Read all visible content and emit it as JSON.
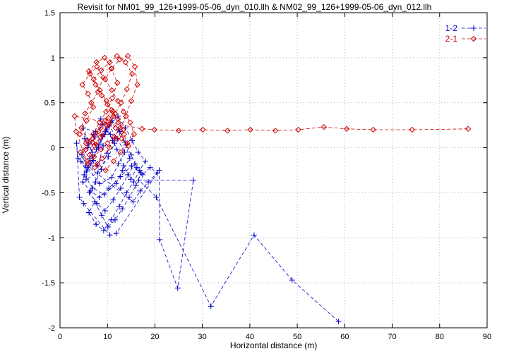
{
  "chart_data": {
    "type": "scatter",
    "title": "Revisit for NM01_99_126+1999-05-06_dyn_010.llh & NM02_99_126+1999-05-06_dyn_012.llh",
    "xlabel": "Horizontal distance (m)",
    "ylabel": "Vertical distance (m)",
    "xlim": [
      0,
      90
    ],
    "ylim": [
      -2,
      1.5
    ],
    "xticks": [
      0,
      10,
      20,
      30,
      40,
      50,
      60,
      70,
      80,
      90
    ],
    "yticks": [
      -2,
      -1.5,
      -1,
      -0.5,
      0,
      0.5,
      1,
      1.5
    ],
    "grid": true,
    "grid_color": "#b8b8b8",
    "legend_position": "top-right",
    "series": [
      {
        "name": "1-2",
        "color": "#0000cc",
        "marker": "plus",
        "linestyle": "dashed",
        "points": [
          [
            5.2,
            0.1
          ],
          [
            6.8,
            -0.05
          ],
          [
            4.9,
            0.22
          ],
          [
            7.5,
            0.18
          ],
          [
            9.1,
            0.02
          ],
          [
            8.0,
            -0.2
          ],
          [
            6.3,
            -0.12
          ],
          [
            5.5,
            -0.35
          ],
          [
            7.9,
            -0.28
          ],
          [
            10.2,
            -0.1
          ],
          [
            11.5,
            0.05
          ],
          [
            9.8,
            0.2
          ],
          [
            8.6,
            0.32
          ],
          [
            7.1,
            0.15
          ],
          [
            6.0,
            0.05
          ],
          [
            4.6,
            -0.08
          ],
          [
            5.8,
            -0.22
          ],
          [
            8.4,
            -0.4
          ],
          [
            10.9,
            -0.33
          ],
          [
            12.3,
            -0.18
          ],
          [
            13.6,
            -0.05
          ],
          [
            12.1,
            0.1
          ],
          [
            10.4,
            0.24
          ],
          [
            9.0,
            0.12
          ],
          [
            7.7,
            -0.02
          ],
          [
            6.5,
            -0.18
          ],
          [
            5.1,
            -0.3
          ],
          [
            6.9,
            -0.45
          ],
          [
            9.3,
            -0.52
          ],
          [
            11.8,
            -0.4
          ],
          [
            13.2,
            -0.25
          ],
          [
            14.7,
            -0.12
          ],
          [
            13.9,
            0.03
          ],
          [
            12.6,
            0.18
          ],
          [
            11.0,
            0.3
          ],
          [
            9.6,
            0.18
          ],
          [
            8.2,
            0.04
          ],
          [
            7.0,
            -0.14
          ],
          [
            5.6,
            -0.26
          ],
          [
            4.4,
            -0.15
          ],
          [
            5.9,
            0.0
          ],
          [
            7.4,
            0.12
          ],
          [
            8.9,
            0.26
          ],
          [
            10.6,
            0.15
          ],
          [
            12.0,
            -0.02
          ],
          [
            13.4,
            -0.2
          ],
          [
            14.9,
            -0.35
          ],
          [
            16.2,
            -0.22
          ],
          [
            15.0,
            -0.08
          ],
          [
            13.7,
            0.06
          ],
          [
            12.4,
            0.2
          ],
          [
            11.1,
            0.08
          ],
          [
            9.9,
            -0.06
          ],
          [
            8.7,
            -0.24
          ],
          [
            7.5,
            -0.38
          ],
          [
            6.2,
            -0.5
          ],
          [
            7.8,
            -0.62
          ],
          [
            9.5,
            -0.7
          ],
          [
            11.2,
            -0.58
          ],
          [
            12.8,
            -0.45
          ],
          [
            14.3,
            -0.3
          ],
          [
            15.8,
            -0.18
          ],
          [
            17.1,
            -0.28
          ],
          [
            16.0,
            -0.42
          ],
          [
            14.6,
            -0.55
          ],
          [
            13.1,
            -0.68
          ],
          [
            11.6,
            -0.8
          ],
          [
            10.1,
            -0.88
          ],
          [
            8.8,
            -0.75
          ],
          [
            7.3,
            -0.6
          ],
          [
            6.1,
            -0.72
          ],
          [
            7.6,
            -0.85
          ],
          [
            9.2,
            -0.92
          ],
          [
            10.8,
            -0.8
          ],
          [
            12.5,
            -0.65
          ],
          [
            14.0,
            -0.5
          ],
          [
            15.5,
            -0.38
          ],
          [
            16.8,
            -0.25
          ],
          [
            18.0,
            -0.15
          ],
          [
            16.5,
            -0.05
          ],
          [
            15.2,
            0.08
          ],
          [
            13.8,
            0.22
          ],
          [
            12.2,
            0.35
          ],
          [
            10.7,
            0.28
          ],
          [
            9.4,
            0.15
          ],
          [
            8.1,
            0.0
          ],
          [
            6.8,
            -0.1
          ],
          [
            5.4,
            -0.2
          ],
          [
            4.8,
            -0.38
          ],
          [
            6.4,
            -0.48
          ],
          [
            8.3,
            -0.55
          ],
          [
            10.3,
            -0.45
          ],
          [
            12.7,
            -0.32
          ],
          [
            15.1,
            -0.2
          ],
          [
            17.4,
            -0.3
          ],
          [
            19.0,
            -0.22
          ],
          [
            20.5,
            -0.28
          ],
          [
            18.6,
            -0.38
          ],
          [
            16.9,
            -0.48
          ],
          [
            15.4,
            -0.6
          ],
          [
            3.8,
            -0.12
          ],
          [
            3.5,
            0.05
          ],
          [
            4.1,
            -0.55
          ],
          [
            5.0,
            -0.62
          ],
          [
            10.5,
            -0.97
          ],
          [
            11.9,
            -0.95
          ],
          [
            20.9,
            -0.25
          ],
          [
            21.0,
            -1.02
          ],
          [
            24.8,
            -1.56
          ],
          [
            28.1,
            -0.36
          ],
          [
            16.6,
            -0.36
          ],
          [
            20.3,
            -0.55
          ],
          [
            31.8,
            -1.76
          ],
          [
            40.9,
            -0.97
          ],
          [
            48.9,
            -1.47
          ],
          [
            58.7,
            -1.93
          ]
        ]
      },
      {
        "name": "2-1",
        "color": "#cc0000",
        "marker": "diamond",
        "linestyle": "dashed",
        "points": [
          [
            4.2,
            0.15
          ],
          [
            5.6,
            0.3
          ],
          [
            7.0,
            0.45
          ],
          [
            5.9,
            0.6
          ],
          [
            4.7,
            0.7
          ],
          [
            6.3,
            0.82
          ],
          [
            7.8,
            0.9
          ],
          [
            9.1,
            0.78
          ],
          [
            8.0,
            0.62
          ],
          [
            6.6,
            0.5
          ],
          [
            5.3,
            0.38
          ],
          [
            4.5,
            0.22
          ],
          [
            5.8,
            0.08
          ],
          [
            7.2,
            0.02
          ],
          [
            8.5,
            0.12
          ],
          [
            9.9,
            0.25
          ],
          [
            11.2,
            0.35
          ],
          [
            10.0,
            0.48
          ],
          [
            8.8,
            0.58
          ],
          [
            7.5,
            0.7
          ],
          [
            6.1,
            0.85
          ],
          [
            7.7,
            0.95
          ],
          [
            9.4,
            1.0
          ],
          [
            10.8,
            0.88
          ],
          [
            12.1,
            0.72
          ],
          [
            11.0,
            0.55
          ],
          [
            9.7,
            0.4
          ],
          [
            8.3,
            0.28
          ],
          [
            7.0,
            0.15
          ],
          [
            5.5,
            0.05
          ],
          [
            4.3,
            -0.05
          ],
          [
            5.7,
            -0.15
          ],
          [
            7.3,
            -0.22
          ],
          [
            8.9,
            -0.12
          ],
          [
            10.4,
            0.0
          ],
          [
            11.9,
            0.1
          ],
          [
            13.3,
            0.2
          ],
          [
            12.2,
            0.32
          ],
          [
            10.9,
            0.42
          ],
          [
            9.5,
            0.3
          ],
          [
            8.1,
            0.18
          ],
          [
            6.8,
            0.06
          ],
          [
            5.4,
            -0.02
          ],
          [
            6.9,
            0.1
          ],
          [
            8.6,
            0.22
          ],
          [
            10.2,
            0.33
          ],
          [
            11.7,
            0.22
          ],
          [
            13.0,
            0.1
          ],
          [
            14.4,
            0.02
          ],
          [
            13.5,
            0.15
          ],
          [
            12.3,
            0.28
          ],
          [
            11.1,
            0.4
          ],
          [
            9.8,
            0.52
          ],
          [
            8.4,
            0.64
          ],
          [
            7.1,
            0.76
          ],
          [
            8.7,
            0.86
          ],
          [
            10.5,
            0.95
          ],
          [
            12.0,
            1.02
          ],
          [
            13.8,
            0.95
          ],
          [
            15.2,
            0.82
          ],
          [
            14.1,
            0.65
          ],
          [
            12.9,
            0.5
          ],
          [
            11.6,
            0.38
          ],
          [
            10.3,
            0.26
          ],
          [
            9.0,
            0.14
          ],
          [
            7.6,
            0.04
          ],
          [
            6.2,
            -0.08
          ],
          [
            7.9,
            -0.18
          ],
          [
            9.6,
            -0.25
          ],
          [
            11.3,
            -0.15
          ],
          [
            12.8,
            -0.05
          ],
          [
            14.2,
            0.05
          ],
          [
            15.6,
            0.15
          ],
          [
            14.8,
            0.28
          ],
          [
            13.4,
            0.4
          ],
          [
            12.2,
            0.52
          ],
          [
            10.9,
            0.64
          ],
          [
            9.5,
            0.76
          ],
          [
            10.9,
            0.88
          ],
          [
            12.6,
            0.98
          ],
          [
            14.3,
            1.02
          ],
          [
            15.8,
            0.9
          ],
          [
            16.3,
            0.7
          ],
          [
            15.0,
            0.52
          ],
          [
            13.9,
            0.35
          ],
          [
            12.7,
            0.22
          ],
          [
            11.4,
            0.12
          ],
          [
            10.0,
            0.05
          ],
          [
            8.6,
            -0.02
          ],
          [
            7.2,
            -0.1
          ],
          [
            5.8,
            -0.18
          ],
          [
            3.4,
            0.18
          ],
          [
            3.1,
            0.35
          ],
          [
            17.3,
            0.21
          ],
          [
            19.9,
            0.2
          ],
          [
            25.0,
            0.19
          ],
          [
            30.1,
            0.2
          ],
          [
            35.3,
            0.19
          ],
          [
            40.1,
            0.2
          ],
          [
            45.4,
            0.19
          ],
          [
            50.2,
            0.2
          ],
          [
            55.6,
            0.23
          ],
          [
            60.4,
            0.21
          ],
          [
            66.0,
            0.2
          ],
          [
            74.2,
            0.2
          ],
          [
            86.0,
            0.21
          ]
        ]
      }
    ]
  }
}
